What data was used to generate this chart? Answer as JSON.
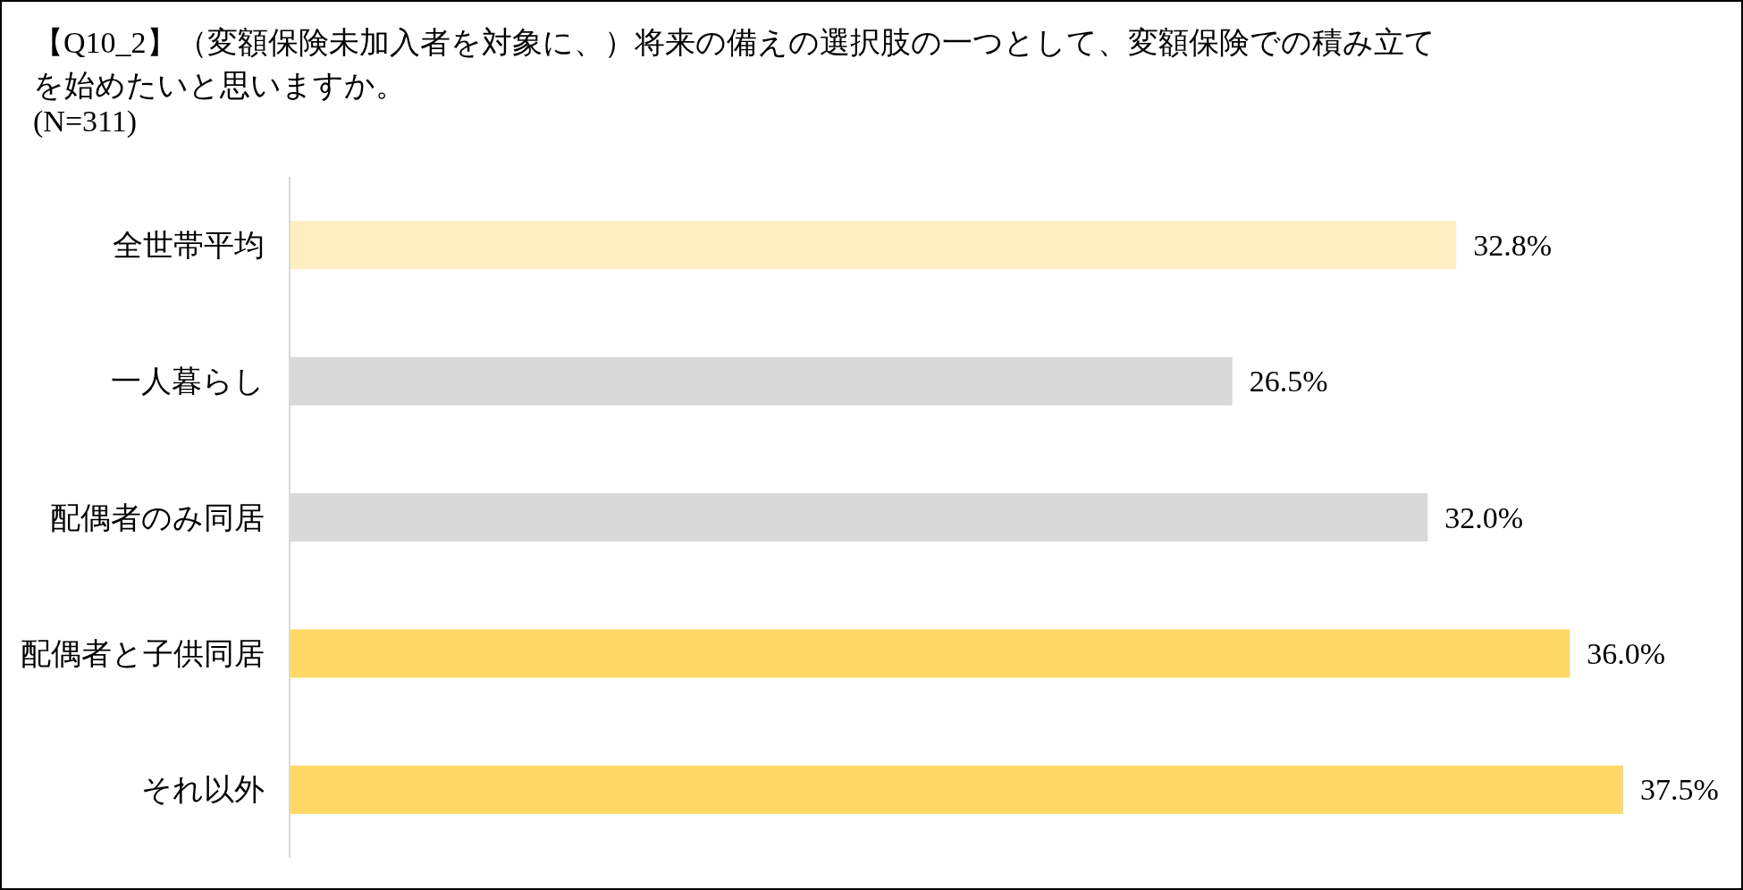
{
  "chart_data": {
    "type": "bar",
    "orientation": "horizontal",
    "title": "【Q10_2】（変額保険未加入者を対象に、）将来の備えの選択肢の一つとして、変額保険での積み立てを始めたいと思いますか。",
    "subtitle": "(N=311)",
    "categories": [
      "全世帯平均",
      "一人暮らし",
      "配偶者のみ同居",
      "配偶者と子供同居",
      "それ以外"
    ],
    "values": [
      32.8,
      26.5,
      32.0,
      36.0,
      37.5
    ],
    "colors": [
      "#ffefc0",
      "#d9d9d9",
      "#d9d9d9",
      "#ffd966",
      "#ffd966"
    ],
    "value_labels": [
      "32.8%",
      "26.5%",
      "32.0%",
      "36.0%",
      "37.5%"
    ]
  }
}
